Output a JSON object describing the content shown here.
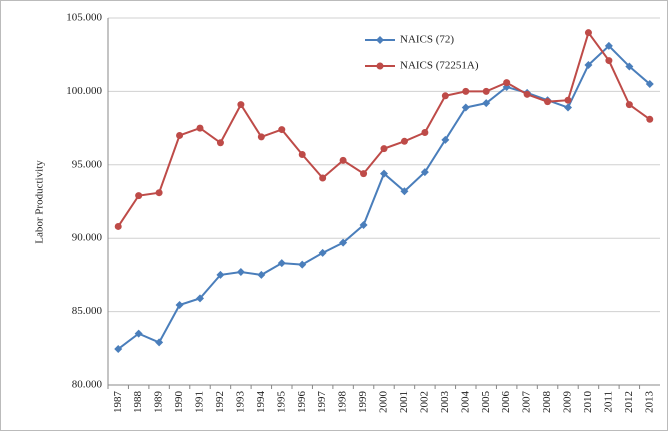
{
  "chart_data": {
    "type": "line",
    "y_label": "Labor Productivity",
    "categories": [
      "1987",
      "1988",
      "1989",
      "1990",
      "1991",
      "1992",
      "1993",
      "1994",
      "1995",
      "1996",
      "1997",
      "1998",
      "1999",
      "2000",
      "2001",
      "2002",
      "2003",
      "2004",
      "2005",
      "2006",
      "2007",
      "2008",
      "2009",
      "2010",
      "2011",
      "2012",
      "2013"
    ],
    "series": [
      {
        "name": "NAICS (72)",
        "color": "#4a7ebb",
        "marker": "diamond",
        "values": [
          82.45,
          83.5,
          82.9,
          85.45,
          85.9,
          87.5,
          87.7,
          87.5,
          88.3,
          88.2,
          89.0,
          89.7,
          90.9,
          94.4,
          93.2,
          94.5,
          96.7,
          98.9,
          99.2,
          100.3,
          99.9,
          99.4,
          98.9,
          101.8,
          103.1,
          101.7,
          100.5
        ]
      },
      {
        "name": "NAICS (72251A)",
        "color": "#be4b48",
        "marker": "circle",
        "values": [
          90.8,
          92.9,
          93.1,
          97.0,
          97.5,
          96.5,
          99.1,
          96.9,
          97.4,
          95.7,
          94.1,
          95.3,
          94.4,
          96.1,
          96.6,
          97.2,
          99.7,
          100.0,
          100.0,
          100.6,
          99.8,
          99.3,
          99.4,
          104.0,
          102.1,
          99.1,
          98.1
        ]
      }
    ],
    "ylim": [
      80,
      105
    ],
    "yticks": [
      {
        "value": 80,
        "label": "80.000"
      },
      {
        "value": 85,
        "label": "85.000"
      },
      {
        "value": 90,
        "label": "90.000"
      },
      {
        "value": 95,
        "label": "95.000"
      },
      {
        "value": 100,
        "label": "100.000"
      },
      {
        "value": 105,
        "label": "105.000"
      }
    ],
    "grid": true
  }
}
